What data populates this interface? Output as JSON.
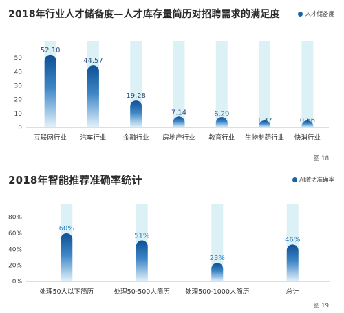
{
  "chart_data": [
    {
      "type": "bar",
      "title": "2018年行业人才储备度—人才库存量简历对招聘需求的满足度",
      "legend": "人才储备度",
      "figure_label": "图 18",
      "categories": [
        "互联网行业",
        "汽车行业",
        "金融行业",
        "房地产行业",
        "教育行业",
        "生物制药行业",
        "快消行业"
      ],
      "series": [
        {
          "name": "人才储备度",
          "values": [
            52.1,
            44.57,
            19.28,
            7.14,
            6.29,
            1.37,
            0.66
          ]
        }
      ],
      "value_labels": [
        "52.10",
        "44.57",
        "19.28",
        "7.14",
        "6.29",
        "1.37",
        "0.66"
      ],
      "yticks": [
        "0",
        "10",
        "20",
        "30",
        "40",
        "50"
      ],
      "ylim": [
        0,
        58
      ],
      "grid": false,
      "legend_position": "top-right",
      "colors": {
        "bar_top": "#0f4f96",
        "bar_bottom": "#e3f2fb",
        "track": "#dcf1f5"
      }
    },
    {
      "type": "bar",
      "title": "2018年智能推荐准确率统计",
      "legend": "AI激活准确率",
      "figure_label": "图 19",
      "categories": [
        "处理50人以下简历",
        "处理50-500人简历",
        "处理500-1000人简历",
        "总计"
      ],
      "series": [
        {
          "name": "AI激活准确率",
          "values": [
            60,
            51,
            23,
            46
          ]
        }
      ],
      "value_labels": [
        "60%",
        "51%",
        "23%",
        "46%"
      ],
      "yticks": [
        "0%",
        "20%",
        "40%",
        "60%",
        "80%"
      ],
      "ylim": [
        0,
        90
      ],
      "grid": false,
      "legend_position": "top-right",
      "colors": {
        "bar_top": "#0f4f96",
        "bar_bottom": "#e3f2fb",
        "track": "#dcf1f5"
      }
    }
  ]
}
